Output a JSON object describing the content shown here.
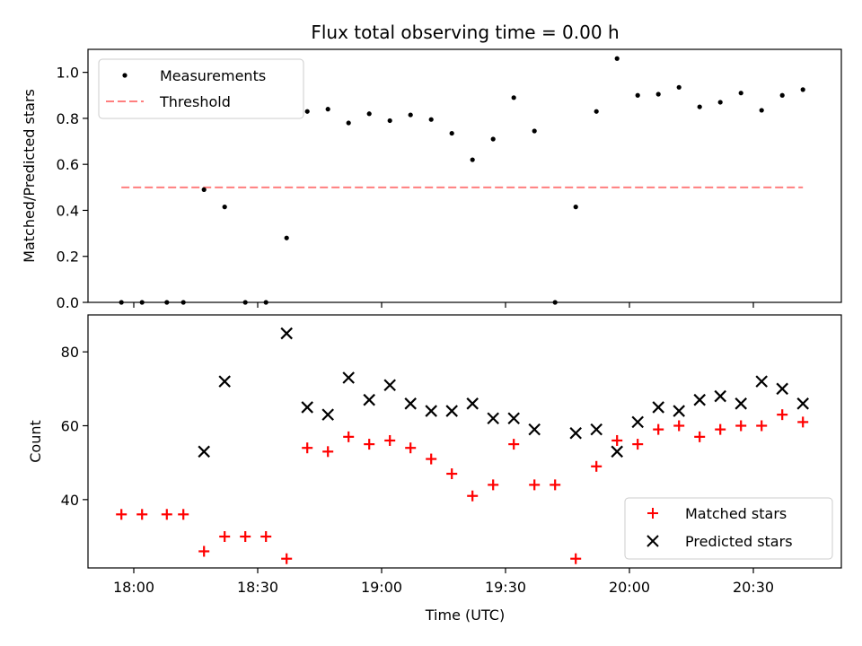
{
  "chart_data": [
    {
      "type": "scatter",
      "title": "Flux total observing time = 0.00 h",
      "xlabel": "",
      "ylabel": "Matched/Predicted stars",
      "ylim": [
        0,
        1.1
      ],
      "yticks": [
        "0.0",
        "0.2",
        "0.4",
        "0.6",
        "0.8",
        "1.0"
      ],
      "legend_position": "top-left",
      "threshold": {
        "name": "Threshold",
        "value": 0.5,
        "x_start": "17:57",
        "x_end": "20:42",
        "color": "#ff7f7f"
      },
      "series": [
        {
          "name": "Measurements",
          "color": "#000000",
          "x": [
            "17:57",
            "18:02",
            "18:08",
            "18:12",
            "18:17",
            "18:22",
            "18:27",
            "18:32",
            "18:37",
            "18:42",
            "18:47",
            "18:52",
            "18:57",
            "19:02",
            "19:07",
            "19:12",
            "19:17",
            "19:22",
            "19:27",
            "19:32",
            "19:37",
            "19:42",
            "19:47",
            "19:52",
            "19:57",
            "20:02",
            "20:07",
            "20:12",
            "20:17",
            "20:22",
            "20:27",
            "20:32",
            "20:37",
            "20:42"
          ],
          "values": [
            0.0,
            0.0,
            0.0,
            0.0,
            0.49,
            0.415,
            0.0,
            0.0,
            0.28,
            0.83,
            0.84,
            0.78,
            0.82,
            0.79,
            0.815,
            0.795,
            0.735,
            0.62,
            0.71,
            0.89,
            0.745,
            0.0,
            0.415,
            0.83,
            1.06,
            0.9,
            0.905,
            0.935,
            0.85,
            0.87,
            0.91,
            0.835,
            0.9,
            0.925
          ]
        }
      ]
    },
    {
      "type": "scatter",
      "title": "",
      "xlabel": "Time (UTC)",
      "ylabel": "Count",
      "ylim": [
        21.5,
        90
      ],
      "yticks": [
        "40",
        "60",
        "80"
      ],
      "xticks": [
        "18:00",
        "18:30",
        "19:00",
        "19:30",
        "20:00",
        "20:30"
      ],
      "legend_position": "bottom-right",
      "series": [
        {
          "name": "Matched stars",
          "color": "#ff0000",
          "marker": "plus",
          "x": [
            "17:57",
            "18:02",
            "18:08",
            "18:12",
            "18:17",
            "18:22",
            "18:27",
            "18:32",
            "18:37",
            "18:42",
            "18:47",
            "18:52",
            "18:57",
            "19:02",
            "19:07",
            "19:12",
            "19:17",
            "19:22",
            "19:27",
            "19:32",
            "19:37",
            "19:42",
            "19:47",
            "19:52",
            "19:57",
            "20:02",
            "20:07",
            "20:12",
            "20:17",
            "20:22",
            "20:27",
            "20:32",
            "20:37",
            "20:42"
          ],
          "values": [
            36,
            36,
            36,
            36,
            26,
            30,
            30,
            30,
            24,
            54,
            53,
            57,
            55,
            56,
            54,
            51,
            47,
            41,
            44,
            55,
            44,
            44,
            24,
            49,
            56,
            55,
            59,
            60,
            57,
            59,
            60,
            60,
            63,
            61
          ]
        },
        {
          "name": "Predicted stars",
          "color": "#000000",
          "marker": "x",
          "x": [
            "18:17",
            "18:22",
            "18:37",
            "18:42",
            "18:47",
            "18:52",
            "18:57",
            "19:02",
            "19:07",
            "19:12",
            "19:17",
            "19:22",
            "19:27",
            "19:32",
            "19:37",
            "19:47",
            "19:52",
            "19:57",
            "20:02",
            "20:07",
            "20:12",
            "20:17",
            "20:22",
            "20:27",
            "20:32",
            "20:37",
            "20:42"
          ],
          "values": [
            53,
            72,
            85,
            65,
            63,
            73,
            67,
            71,
            66,
            64,
            64,
            66,
            62,
            62,
            59,
            58,
            59,
            53,
            61,
            65,
            64,
            67,
            68,
            66,
            72,
            70,
            66
          ]
        }
      ]
    }
  ]
}
